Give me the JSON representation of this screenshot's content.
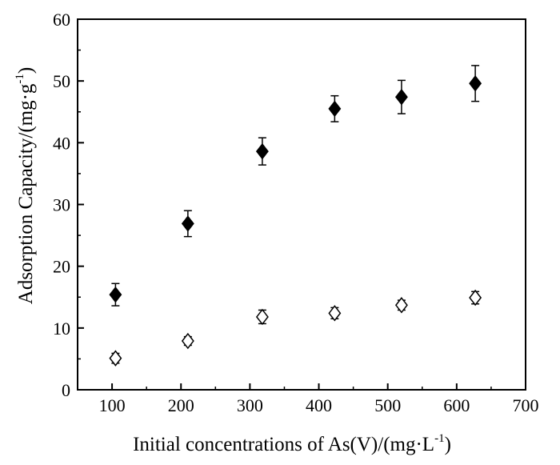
{
  "chart_data": {
    "type": "scatter",
    "xlabel": {
      "main": "Initial concentrations of As(V)/(mg·L",
      "sup": "-1",
      "tail": ")"
    },
    "ylabel": {
      "main": "Adsorption Capacity/(mg·g",
      "sup": "-1",
      "tail": ")"
    },
    "xlim": [
      50,
      700
    ],
    "ylim": [
      0,
      60
    ],
    "xticks": [
      100,
      200,
      300,
      400,
      500,
      600,
      700
    ],
    "yticks": [
      0,
      10,
      20,
      30,
      40,
      50,
      60
    ],
    "grid": false,
    "series": [
      {
        "marker": "filled-diamond",
        "color": "#000000",
        "points": [
          {
            "x": 105,
            "y": 15.4,
            "err": 1.8
          },
          {
            "x": 210,
            "y": 26.9,
            "err": 2.1
          },
          {
            "x": 318,
            "y": 38.6,
            "err": 2.2
          },
          {
            "x": 423,
            "y": 45.5,
            "err": 2.1
          },
          {
            "x": 520,
            "y": 47.4,
            "err": 2.7
          },
          {
            "x": 627,
            "y": 49.6,
            "err": 2.9
          }
        ]
      },
      {
        "marker": "open-diamond",
        "color": "#000000",
        "points": [
          {
            "x": 105,
            "y": 5.1,
            "err": 0.8
          },
          {
            "x": 210,
            "y": 7.9,
            "err": 0.7
          },
          {
            "x": 318,
            "y": 11.8,
            "err": 1.1
          },
          {
            "x": 423,
            "y": 12.4,
            "err": 0.9
          },
          {
            "x": 520,
            "y": 13.7,
            "err": 0.8
          },
          {
            "x": 627,
            "y": 14.9,
            "err": 1.0
          }
        ]
      }
    ]
  }
}
